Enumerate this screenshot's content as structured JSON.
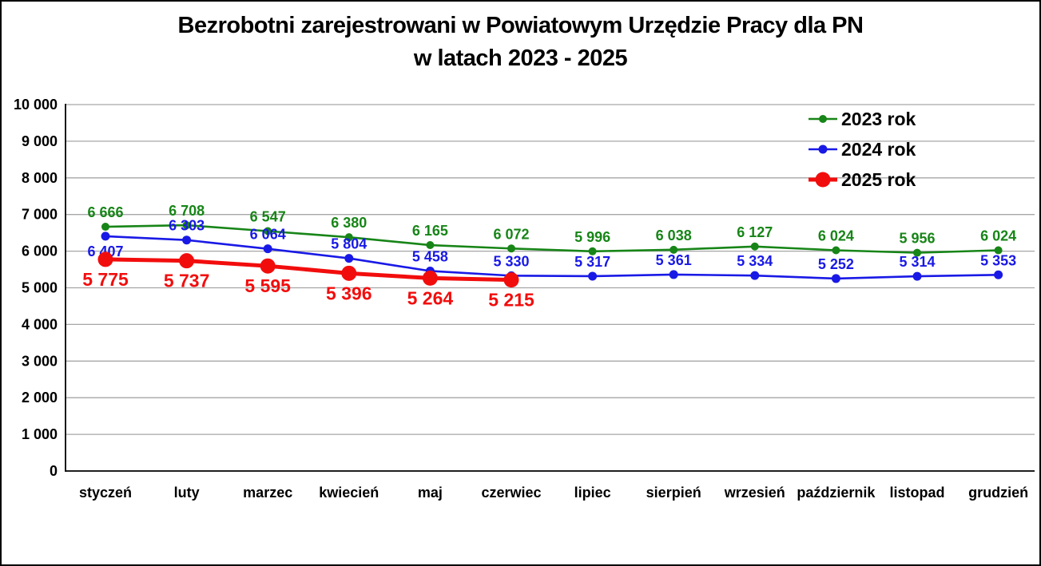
{
  "figure": {
    "title_line1": "Bezrobotni zarejestrowani w Powiatowym Urzędzie Pracy dla PN",
    "title_line2": "w latach 2023 - 2025"
  },
  "chart_data": {
    "type": "line",
    "title": "Bezrobotni zarejestrowani w Powiatowym Urzędzie Pracy dla PN w latach 2023 - 2025",
    "categories": [
      "styczeń",
      "luty",
      "marzec",
      "kwiecień",
      "maj",
      "czerwiec",
      "lipiec",
      "sierpień",
      "wrzesień",
      "październik",
      "listopad",
      "grudzień"
    ],
    "series": [
      {
        "name": "2023 rok",
        "color": "#178517",
        "values": [
          6666,
          6708,
          6547,
          6380,
          6165,
          6072,
          5996,
          6038,
          6127,
          6024,
          5956,
          6024
        ]
      },
      {
        "name": "2024 rok",
        "color": "#1919E6",
        "values": [
          6407,
          6303,
          6064,
          5804,
          5458,
          5330,
          5317,
          5361,
          5334,
          5252,
          5314,
          5353
        ]
      },
      {
        "name": "2025 rok",
        "color": "#F20D0D",
        "values": [
          5775,
          5737,
          5595,
          5396,
          5264,
          5215
        ]
      }
    ],
    "xlabel": "",
    "ylabel": "",
    "ylim": [
      0,
      10000
    ],
    "ytick_step": 1000,
    "ytick_labels": [
      "0",
      "1 000",
      "2 000",
      "3 000",
      "4 000",
      "5 000",
      "6 000",
      "7 000",
      "8 000",
      "9 000",
      "10 000"
    ],
    "data_labels_shown": true,
    "grid": true,
    "gridline_color": "#A6A6A6",
    "axis_color": "#000000",
    "text_color": "#000000",
    "legend_position": "top-right",
    "legend_entries": [
      "2023 rok",
      "2024 rok",
      "2025 rok"
    ]
  }
}
